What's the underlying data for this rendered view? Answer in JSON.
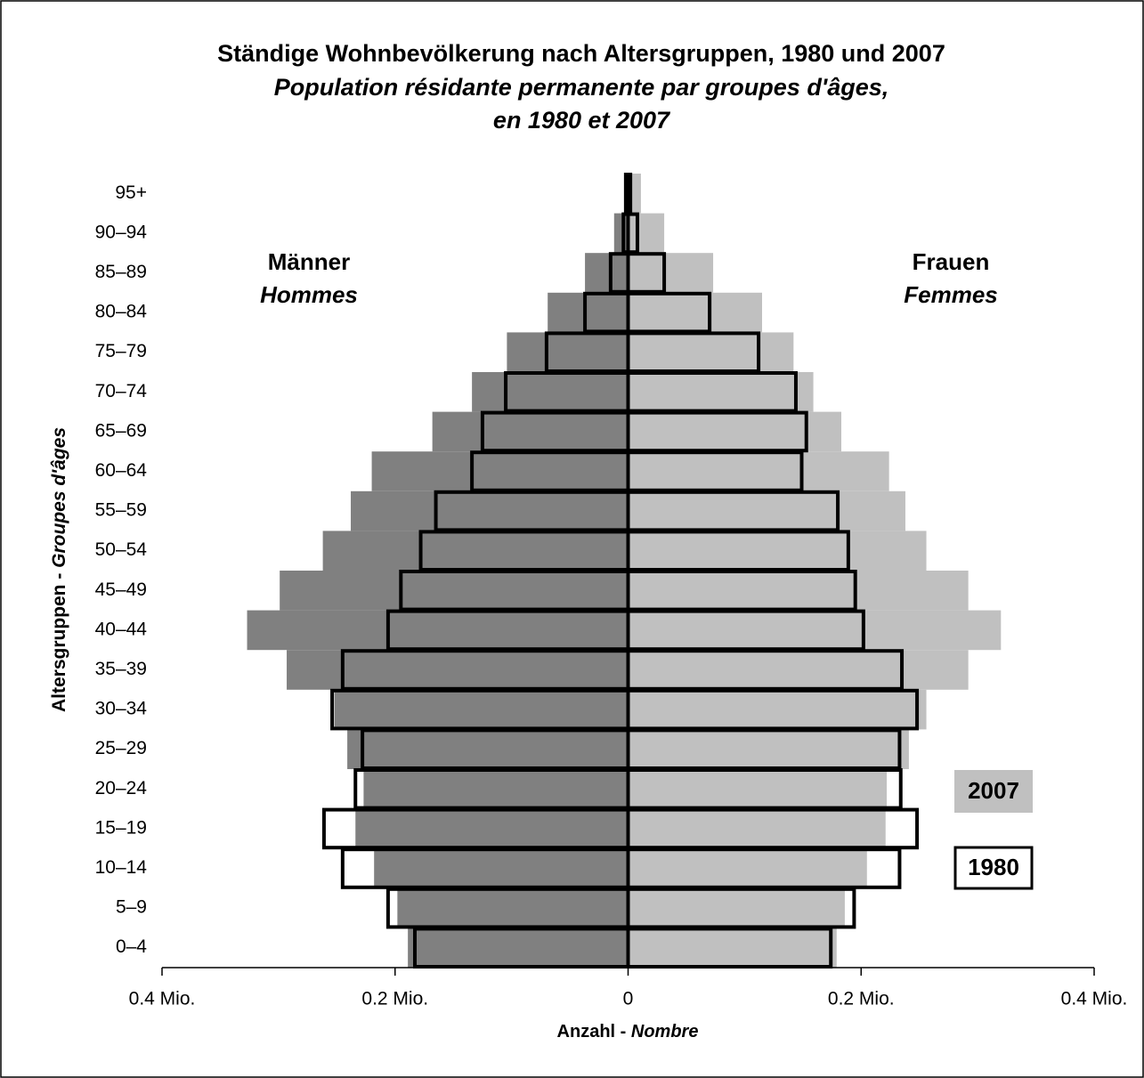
{
  "chart_data": {
    "type": "pyramid",
    "title": "Ständige Wohnbevölkerung nach Altersgruppen, 1980 und 2007",
    "subtitle": [
      "Population résidante permanente par groupes d'âges,",
      "en 1980 et 2007"
    ],
    "x_label": [
      "Anzahl -",
      "Nombre"
    ],
    "y_label": [
      "Altersgruppen -",
      "Groupes d'âges"
    ],
    "left_label": [
      "Männer",
      "Hommes"
    ],
    "right_label": [
      "Frauen",
      "Femmes"
    ],
    "categories": [
      "0–4",
      "5–9",
      "10–14",
      "15–19",
      "20–24",
      "25–29",
      "30–34",
      "35–39",
      "40–44",
      "45–49",
      "50–54",
      "55–59",
      "60–64",
      "65–69",
      "70–74",
      "75–79",
      "80–84",
      "85–89",
      "90–94",
      "95+"
    ],
    "xlim": [
      -0.4,
      0.4
    ],
    "xticks": [
      {
        "value": -0.4,
        "label": "0.4 Mio."
      },
      {
        "value": -0.2,
        "label": "0.2 Mio."
      },
      0,
      {
        "value": 0.2,
        "label": "0.2 Mio."
      },
      {
        "value": 0.4,
        "label": "0.4 Mio."
      }
    ],
    "series": [
      {
        "name": "2007",
        "style": "filled",
        "men_color": "#808080",
        "women_color": "#c0c0c0",
        "men": [
          -0.189,
          -0.198,
          -0.218,
          -0.234,
          -0.227,
          -0.241,
          -0.252,
          -0.293,
          -0.327,
          -0.299,
          -0.262,
          -0.238,
          -0.22,
          -0.168,
          -0.134,
          -0.104,
          -0.069,
          -0.037,
          -0.012,
          -0.002
        ],
        "women": [
          0.179,
          0.186,
          0.205,
          0.221,
          0.222,
          0.241,
          0.256,
          0.292,
          0.32,
          0.292,
          0.256,
          0.238,
          0.224,
          0.183,
          0.159,
          0.142,
          0.115,
          0.073,
          0.031,
          0.011
        ]
      },
      {
        "name": "1980",
        "style": "outline",
        "color": "#000000",
        "men": [
          -0.183,
          -0.206,
          -0.245,
          -0.261,
          -0.234,
          -0.228,
          -0.254,
          -0.245,
          -0.206,
          -0.195,
          -0.178,
          -0.165,
          -0.134,
          -0.125,
          -0.105,
          -0.07,
          -0.037,
          -0.015,
          -0.004,
          -0.002
        ],
        "women": [
          0.174,
          0.194,
          0.233,
          0.248,
          0.234,
          0.233,
          0.248,
          0.235,
          0.202,
          0.195,
          0.189,
          0.18,
          0.149,
          0.153,
          0.144,
          0.112,
          0.07,
          0.031,
          0.008,
          0.002
        ]
      }
    ]
  }
}
